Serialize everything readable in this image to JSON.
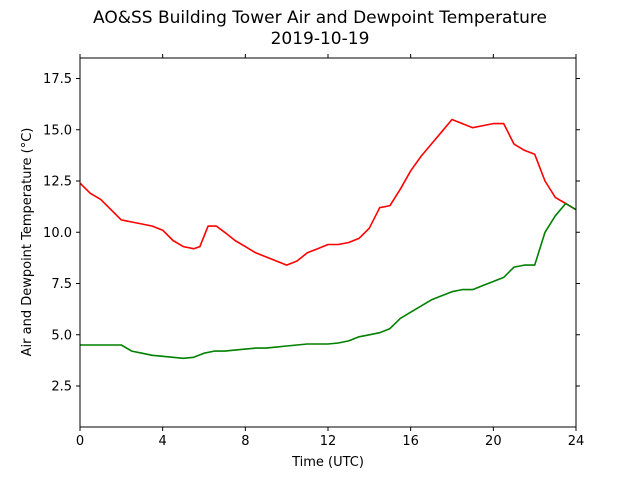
{
  "chart_data": {
    "type": "line",
    "title": "AO&SS Building Tower Air and Dewpoint Temperature",
    "subtitle": "2019-10-19",
    "xlabel": "Time (UTC)",
    "ylabel": "Air and Dewpoint Temperature (°C)",
    "xlim": [
      0,
      24
    ],
    "ylim": [
      0.5,
      18.5
    ],
    "xticks": [
      0,
      4,
      8,
      12,
      16,
      20,
      24
    ],
    "yticks": [
      2.5,
      5.0,
      7.5,
      10.0,
      12.5,
      15.0,
      17.5
    ],
    "ytick_labels": [
      "2.5",
      "5.0",
      "7.5",
      "10.0",
      "12.5",
      "15.0",
      "17.5"
    ],
    "grid": false,
    "series": [
      {
        "color": "#ff0000",
        "x": [
          0,
          0.5,
          1,
          1.5,
          2,
          2.5,
          3,
          3.5,
          4,
          4.5,
          5,
          5.5,
          5.8,
          6.2,
          6.6,
          7,
          7.5,
          8,
          8.5,
          9,
          9.5,
          10,
          10.5,
          11,
          11.5,
          12,
          12.5,
          13,
          13.5,
          14,
          14.5,
          15,
          15.5,
          16,
          16.5,
          17,
          17.5,
          18,
          18.5,
          19,
          19.5,
          20,
          20.5,
          21,
          21.5,
          22,
          22.5,
          23,
          23.5,
          24
        ],
        "y": [
          12.4,
          11.9,
          11.6,
          11.1,
          10.6,
          10.5,
          10.4,
          10.3,
          10.1,
          9.6,
          9.3,
          9.2,
          9.3,
          10.3,
          10.3,
          10.0,
          9.6,
          9.3,
          9.0,
          8.8,
          8.6,
          8.4,
          8.6,
          9.0,
          9.2,
          9.4,
          9.4,
          9.5,
          9.7,
          10.2,
          11.2,
          11.3,
          12.1,
          13.0,
          13.7,
          14.3,
          14.9,
          15.5,
          15.3,
          15.1,
          15.2,
          15.3,
          15.3,
          14.3,
          14.0,
          13.8,
          12.5,
          11.7,
          11.4,
          11.1
        ]
      },
      {
        "color": "#008000",
        "x": [
          0,
          0.5,
          1,
          1.5,
          2,
          2.5,
          3,
          3.5,
          4,
          4.5,
          5,
          5.5,
          6,
          6.5,
          7,
          7.5,
          8,
          8.5,
          9,
          9.5,
          10,
          10.5,
          11,
          11.5,
          12,
          12.5,
          13,
          13.5,
          14,
          14.5,
          15,
          15.5,
          16,
          16.5,
          17,
          17.5,
          18,
          18.5,
          19,
          19.5,
          20,
          20.5,
          21,
          21.5,
          22,
          22.5,
          23,
          23.5,
          24
        ],
        "y": [
          4.5,
          4.5,
          4.5,
          4.5,
          4.5,
          4.2,
          4.1,
          4.0,
          3.95,
          3.9,
          3.85,
          3.9,
          4.1,
          4.2,
          4.2,
          4.25,
          4.3,
          4.35,
          4.35,
          4.4,
          4.45,
          4.5,
          4.55,
          4.55,
          4.55,
          4.6,
          4.7,
          4.9,
          5.0,
          5.1,
          5.3,
          5.8,
          6.1,
          6.4,
          6.7,
          6.9,
          7.1,
          7.2,
          7.2,
          7.4,
          7.6,
          7.8,
          8.3,
          8.4,
          8.4,
          10.0,
          10.8,
          11.4,
          11.1
        ]
      }
    ]
  }
}
